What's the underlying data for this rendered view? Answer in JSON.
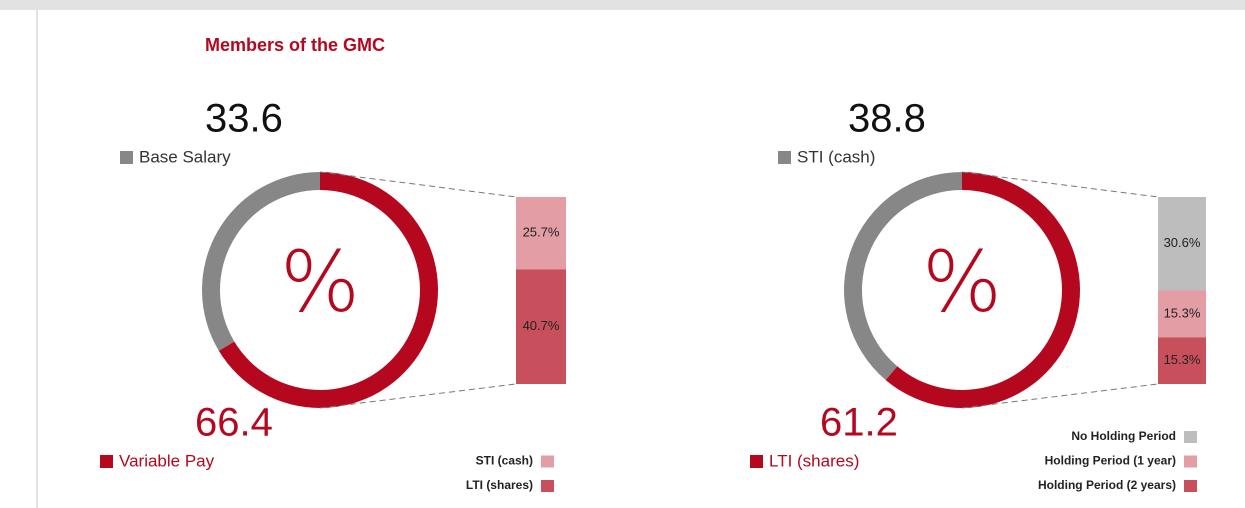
{
  "title": "Members of the GMC",
  "chart_data": [
    {
      "type": "donut",
      "categories": [
        "Base Salary",
        "Variable Pay"
      ],
      "values": [
        33.6,
        66.4
      ],
      "colors": [
        "#878787",
        "#b5081f"
      ],
      "center_label": "%",
      "breakdown": {
        "categories": [
          "STI (cash)",
          "LTI (shares)"
        ],
        "values": [
          25.7,
          40.7
        ],
        "value_labels": [
          "25.7%",
          "40.7%"
        ],
        "colors": [
          "#e39ea5",
          "#c8505c"
        ]
      }
    },
    {
      "type": "donut",
      "categories": [
        "STI (cash)",
        "LTI (shares)"
      ],
      "values": [
        38.8,
        61.2
      ],
      "colors": [
        "#878787",
        "#b5081f"
      ],
      "center_label": "%",
      "breakdown": {
        "categories": [
          "No Holding Period",
          "Holding Period (1 year)",
          "Holding Period (2 years)"
        ],
        "values": [
          30.6,
          15.3,
          15.3
        ],
        "value_labels": [
          "30.6%",
          "15.3%",
          "15.3%"
        ],
        "colors": [
          "#bdbdbd",
          "#e39ea5",
          "#c8505c"
        ]
      }
    }
  ]
}
